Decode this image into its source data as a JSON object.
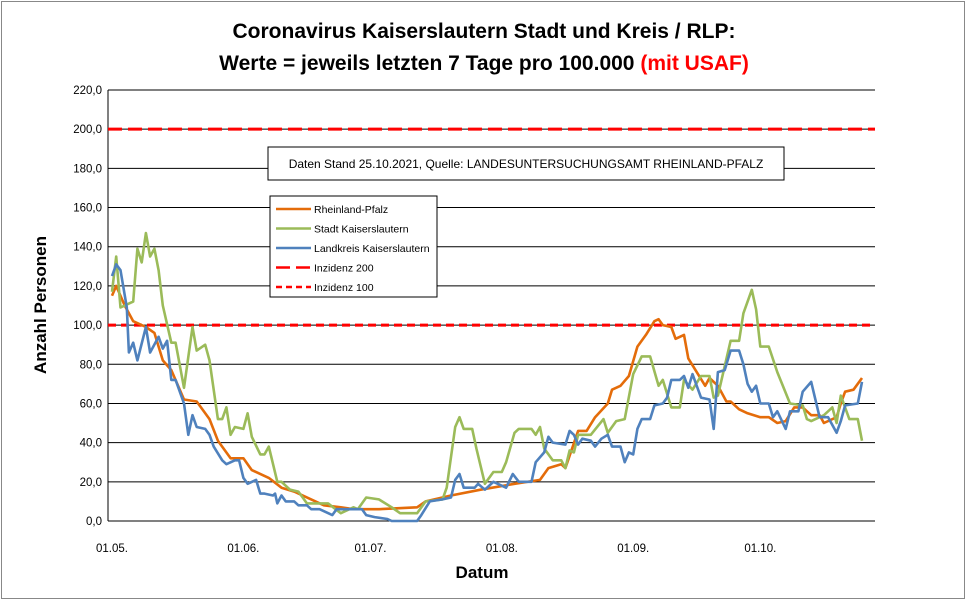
{
  "chart_data": {
    "type": "line",
    "title_line1": "Coronavirus Kaiserslautern Stadt und Kreis / RLP:",
    "title_line2_main": "Werte = jeweils letzten 7 Tage pro 100.000 ",
    "title_line2_highlight": "(mit USAF)",
    "highlight_color": "#ff0000",
    "note": "Daten Stand 25.10.2021, Quelle: LANDESUNTERSUCHUNGSAMT RHEINLAND-PFALZ",
    "xlabel": "Datum",
    "ylabel": "Anzahl Personen",
    "x_unit": "days since 01.05.2021",
    "xlim": [
      0,
      177
    ],
    "ylim": [
      0,
      220
    ],
    "grid": true,
    "legend_position": "upper-left-center",
    "yticks": [
      "0,0",
      "20,0",
      "40,0",
      "60,0",
      "80,0",
      "100,0",
      "120,0",
      "140,0",
      "160,0",
      "180,0",
      "200,0",
      "220,0"
    ],
    "xticks": [
      {
        "label": "01.05.",
        "day": 0
      },
      {
        "label": "01.06.",
        "day": 31
      },
      {
        "label": "01.07.",
        "day": 61
      },
      {
        "label": "01.08.",
        "day": 92
      },
      {
        "label": "01.09.",
        "day": 123
      },
      {
        "label": "01.10.",
        "day": 153
      }
    ],
    "reference_lines": [
      {
        "name": "Inzidenz 200",
        "value": 200,
        "color": "#ff0000",
        "style": "long-dash"
      },
      {
        "name": "Inzidenz 100",
        "value": 100,
        "color": "#ff0000",
        "style": "dash"
      }
    ],
    "series": [
      {
        "name": "Rheinland-Pfalz",
        "color": "#e46c0a",
        "points": [
          [
            0,
            115
          ],
          [
            1,
            120
          ],
          [
            3,
            110
          ],
          [
            5,
            102
          ],
          [
            8,
            99
          ],
          [
            10,
            96
          ],
          [
            12,
            82
          ],
          [
            14,
            77
          ],
          [
            17,
            62
          ],
          [
            20,
            61
          ],
          [
            23,
            52
          ],
          [
            25,
            41
          ],
          [
            28,
            32
          ],
          [
            31,
            32
          ],
          [
            33,
            26
          ],
          [
            37,
            22
          ],
          [
            40,
            17
          ],
          [
            43,
            15
          ],
          [
            47,
            11
          ],
          [
            50,
            8
          ],
          [
            54,
            7
          ],
          [
            57,
            6
          ],
          [
            63,
            6
          ],
          [
            72,
            7
          ],
          [
            74,
            10
          ],
          [
            80,
            13
          ],
          [
            87,
            16
          ],
          [
            95,
            19
          ],
          [
            101,
            21
          ],
          [
            103,
            27
          ],
          [
            106,
            29
          ],
          [
            107,
            27
          ],
          [
            110,
            46
          ],
          [
            112,
            46
          ],
          [
            114,
            53
          ],
          [
            117,
            60
          ],
          [
            118,
            67
          ],
          [
            120,
            69
          ],
          [
            122,
            74
          ],
          [
            124,
            89
          ],
          [
            126,
            95
          ],
          [
            128,
            102
          ],
          [
            129,
            103
          ],
          [
            130,
            100
          ],
          [
            132,
            99
          ],
          [
            133,
            93
          ],
          [
            135,
            95
          ],
          [
            136,
            83
          ],
          [
            138,
            76
          ],
          [
            140,
            69
          ],
          [
            141,
            73
          ],
          [
            143,
            69
          ],
          [
            145,
            61
          ],
          [
            146,
            61
          ],
          [
            148,
            57
          ],
          [
            150,
            55
          ],
          [
            153,
            53
          ],
          [
            155,
            53
          ],
          [
            157,
            50
          ],
          [
            159,
            51
          ],
          [
            161,
            58
          ],
          [
            163,
            58
          ],
          [
            165,
            54
          ],
          [
            167,
            54
          ],
          [
            168,
            50
          ],
          [
            171,
            53
          ],
          [
            172,
            60
          ],
          [
            173,
            66
          ],
          [
            175,
            67
          ],
          [
            177,
            73
          ]
        ]
      },
      {
        "name": "Stadt Kaiserslautern",
        "color": "#9bbb59",
        "points": [
          [
            0,
            117
          ],
          [
            1,
            135
          ],
          [
            2,
            109
          ],
          [
            5,
            112
          ],
          [
            6,
            139
          ],
          [
            7,
            132
          ],
          [
            8,
            147
          ],
          [
            9,
            135
          ],
          [
            10,
            139
          ],
          [
            11,
            128
          ],
          [
            12,
            110
          ],
          [
            14,
            91
          ],
          [
            15,
            91
          ],
          [
            17,
            68
          ],
          [
            19,
            99
          ],
          [
            20,
            87
          ],
          [
            22,
            90
          ],
          [
            23,
            82
          ],
          [
            25,
            52
          ],
          [
            26,
            52
          ],
          [
            27,
            58
          ],
          [
            28,
            44
          ],
          [
            29,
            48
          ],
          [
            31,
            47
          ],
          [
            32,
            55
          ],
          [
            33,
            43
          ],
          [
            35,
            34
          ],
          [
            36,
            34
          ],
          [
            37,
            38
          ],
          [
            39,
            20
          ],
          [
            40,
            20
          ],
          [
            42,
            16
          ],
          [
            44,
            15
          ],
          [
            45,
            12
          ],
          [
            46,
            9
          ],
          [
            48,
            9
          ],
          [
            51,
            9
          ],
          [
            54,
            4
          ],
          [
            57,
            7
          ],
          [
            58,
            6
          ],
          [
            59,
            9
          ],
          [
            60,
            12
          ],
          [
            63,
            11
          ],
          [
            66,
            7
          ],
          [
            68,
            4
          ],
          [
            72,
            4
          ],
          [
            74,
            10
          ],
          [
            78,
            11
          ],
          [
            79,
            17
          ],
          [
            81,
            48
          ],
          [
            82,
            53
          ],
          [
            83,
            47
          ],
          [
            85,
            47
          ],
          [
            86,
            37
          ],
          [
            88,
            19
          ],
          [
            90,
            25
          ],
          [
            92,
            25
          ],
          [
            93,
            30
          ],
          [
            95,
            45
          ],
          [
            96,
            47
          ],
          [
            99,
            47
          ],
          [
            100,
            44
          ],
          [
            101,
            48
          ],
          [
            102,
            37
          ],
          [
            104,
            31
          ],
          [
            106,
            31
          ],
          [
            107,
            27
          ],
          [
            108,
            36
          ],
          [
            109,
            35
          ],
          [
            110,
            44
          ],
          [
            113,
            44
          ],
          [
            116,
            52
          ],
          [
            117,
            45
          ],
          [
            119,
            51
          ],
          [
            121,
            52
          ],
          [
            123,
            75
          ],
          [
            125,
            84
          ],
          [
            127,
            84
          ],
          [
            129,
            69
          ],
          [
            130,
            72
          ],
          [
            132,
            58
          ],
          [
            134,
            58
          ],
          [
            135,
            72
          ],
          [
            137,
            67
          ],
          [
            139,
            74
          ],
          [
            141,
            74
          ],
          [
            142,
            63
          ],
          [
            143,
            64
          ],
          [
            146,
            92
          ],
          [
            148,
            92
          ],
          [
            149,
            106
          ],
          [
            151,
            118
          ],
          [
            152,
            108
          ],
          [
            153,
            89
          ],
          [
            155,
            89
          ],
          [
            157,
            76
          ],
          [
            160,
            60
          ],
          [
            163,
            59
          ],
          [
            164,
            52
          ],
          [
            165,
            51
          ],
          [
            168,
            54
          ],
          [
            170,
            58
          ],
          [
            171,
            50
          ],
          [
            172,
            64
          ],
          [
            174,
            52
          ],
          [
            176,
            52
          ],
          [
            177,
            41
          ]
        ]
      },
      {
        "name": "Landkreis Kaiserslautern",
        "color": "#4f81bd",
        "points": [
          [
            0,
            125
          ],
          [
            1,
            131
          ],
          [
            2,
            128
          ],
          [
            3.5,
            109
          ],
          [
            4,
            86
          ],
          [
            5,
            91
          ],
          [
            6,
            82
          ],
          [
            8,
            99
          ],
          [
            9,
            86
          ],
          [
            11,
            94
          ],
          [
            12,
            88
          ],
          [
            13,
            92
          ],
          [
            14,
            72
          ],
          [
            15,
            72
          ],
          [
            17,
            60
          ],
          [
            18,
            44
          ],
          [
            19,
            54
          ],
          [
            20,
            48
          ],
          [
            22,
            47
          ],
          [
            23,
            44
          ],
          [
            24,
            38
          ],
          [
            26,
            31
          ],
          [
            27,
            29
          ],
          [
            29,
            31
          ],
          [
            30,
            31
          ],
          [
            31,
            22
          ],
          [
            32,
            19
          ],
          [
            34,
            21
          ],
          [
            35,
            14
          ],
          [
            36,
            14
          ],
          [
            38,
            13
          ],
          [
            38.5,
            14
          ],
          [
            39,
            9
          ],
          [
            40,
            13
          ],
          [
            41,
            10
          ],
          [
            43,
            10
          ],
          [
            44,
            8
          ],
          [
            46,
            8
          ],
          [
            47,
            6
          ],
          [
            49,
            6
          ],
          [
            52,
            3
          ],
          [
            53,
            6
          ],
          [
            56,
            6
          ],
          [
            59,
            6
          ],
          [
            60,
            3
          ],
          [
            62,
            2
          ],
          [
            65,
            1
          ],
          [
            66,
            0
          ],
          [
            72,
            0
          ],
          [
            73,
            3
          ],
          [
            75,
            10
          ],
          [
            78,
            11
          ],
          [
            80,
            12
          ],
          [
            81,
            21
          ],
          [
            82,
            24
          ],
          [
            83,
            17
          ],
          [
            85.6,
            17
          ],
          [
            86.4,
            19
          ],
          [
            88,
            16
          ],
          [
            90,
            20
          ],
          [
            93,
            17
          ],
          [
            94.6,
            24
          ],
          [
            96,
            20
          ],
          [
            99,
            20
          ],
          [
            100,
            30
          ],
          [
            102,
            35
          ],
          [
            103,
            43
          ],
          [
            104,
            40
          ],
          [
            107,
            39
          ],
          [
            108,
            46
          ],
          [
            109,
            44
          ],
          [
            110,
            39
          ],
          [
            111,
            42
          ],
          [
            113,
            41
          ],
          [
            114,
            38
          ],
          [
            115.5,
            42
          ],
          [
            117,
            44
          ],
          [
            118,
            38
          ],
          [
            120,
            38
          ],
          [
            121,
            30
          ],
          [
            122,
            35
          ],
          [
            123,
            34
          ],
          [
            124,
            47
          ],
          [
            125,
            52
          ],
          [
            127,
            52
          ],
          [
            128,
            59
          ],
          [
            130,
            60
          ],
          [
            131,
            63
          ],
          [
            132,
            72
          ],
          [
            134,
            72
          ],
          [
            135,
            74
          ],
          [
            136,
            68
          ],
          [
            137,
            75
          ],
          [
            139,
            63
          ],
          [
            141,
            62
          ],
          [
            142,
            47
          ],
          [
            143,
            76
          ],
          [
            144.6,
            77
          ],
          [
            146,
            87
          ],
          [
            148,
            87
          ],
          [
            149,
            80
          ],
          [
            150,
            70
          ],
          [
            151,
            66
          ],
          [
            152,
            69
          ],
          [
            153,
            60
          ],
          [
            155,
            60
          ],
          [
            156,
            53
          ],
          [
            157,
            56
          ],
          [
            159,
            47
          ],
          [
            160,
            56
          ],
          [
            162,
            56
          ],
          [
            163,
            66
          ],
          [
            165,
            71
          ],
          [
            167,
            53
          ],
          [
            169,
            53
          ],
          [
            171,
            45
          ],
          [
            172,
            51
          ],
          [
            173,
            59
          ],
          [
            176,
            60
          ],
          [
            177,
            71
          ]
        ]
      }
    ]
  }
}
